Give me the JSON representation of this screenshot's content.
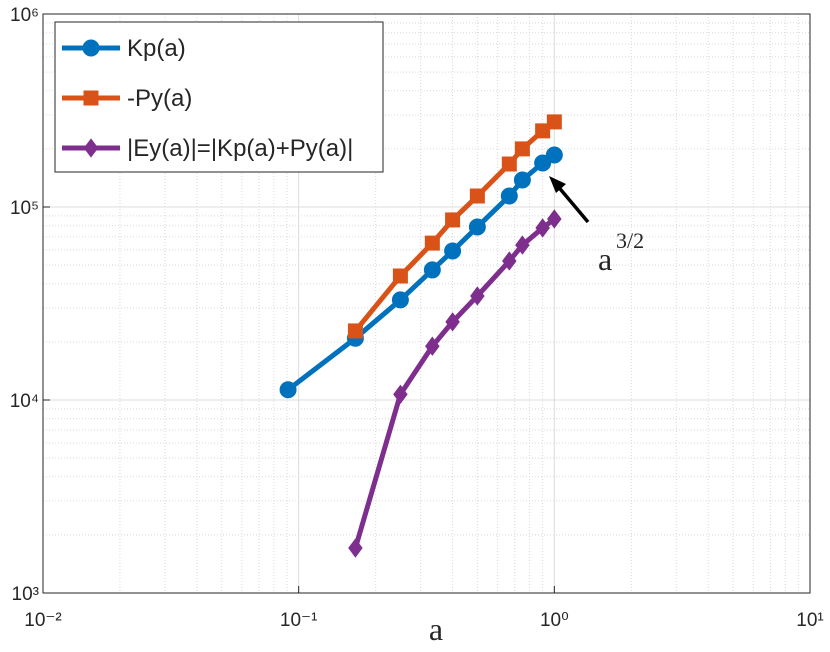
{
  "chart_data": {
    "type": "line",
    "log_x": true,
    "log_y": true,
    "grid": true,
    "minor_grid": true,
    "legend_position": "top-left",
    "xlabel": "a",
    "annotation": {
      "text": "a",
      "superscript": "3/2"
    },
    "xlim": [
      0.01,
      10
    ],
    "ylim": [
      1000,
      1000000
    ],
    "xticks": [
      {
        "value": 0.01,
        "label": "10⁻²"
      },
      {
        "value": 0.1,
        "label": "10⁻¹"
      },
      {
        "value": 1,
        "label": "10⁰"
      },
      {
        "value": 10,
        "label": "10¹"
      }
    ],
    "yticks": [
      {
        "value": 1000,
        "label": "10³"
      },
      {
        "value": 10000,
        "label": "10⁴"
      },
      {
        "value": 100000,
        "label": "10⁵"
      },
      {
        "value": 1000000,
        "label": "10⁶"
      }
    ],
    "series": [
      {
        "name": "Kp(a)",
        "color": "#0072bd",
        "marker": "circle",
        "x": [
          0.0909,
          0.1667,
          0.25,
          0.3333,
          0.4,
          0.5,
          0.6667,
          0.75,
          0.9,
          1.0
        ],
        "values": [
          11300,
          20900,
          33000,
          47200,
          59200,
          78800,
          114000,
          138000,
          169000,
          186000
        ]
      },
      {
        "name": "-Py(a)",
        "color": "#d95319",
        "marker": "square",
        "x": [
          0.1667,
          0.25,
          0.3333,
          0.4,
          0.5,
          0.6667,
          0.75,
          0.9,
          1.0
        ],
        "values": [
          22800,
          43900,
          65000,
          85700,
          114000,
          167000,
          200000,
          248000,
          276000
        ]
      },
      {
        "name": "|Ey(a)|=|Kp(a)+Py(a)|",
        "color": "#7e2f8e",
        "marker": "diamond",
        "x": [
          0.1667,
          0.25,
          0.3333,
          0.4,
          0.5,
          0.6667,
          0.75,
          0.9,
          1.0
        ],
        "values": [
          1710,
          10700,
          19000,
          25400,
          34600,
          52500,
          63500,
          77900,
          86700
        ]
      }
    ]
  }
}
